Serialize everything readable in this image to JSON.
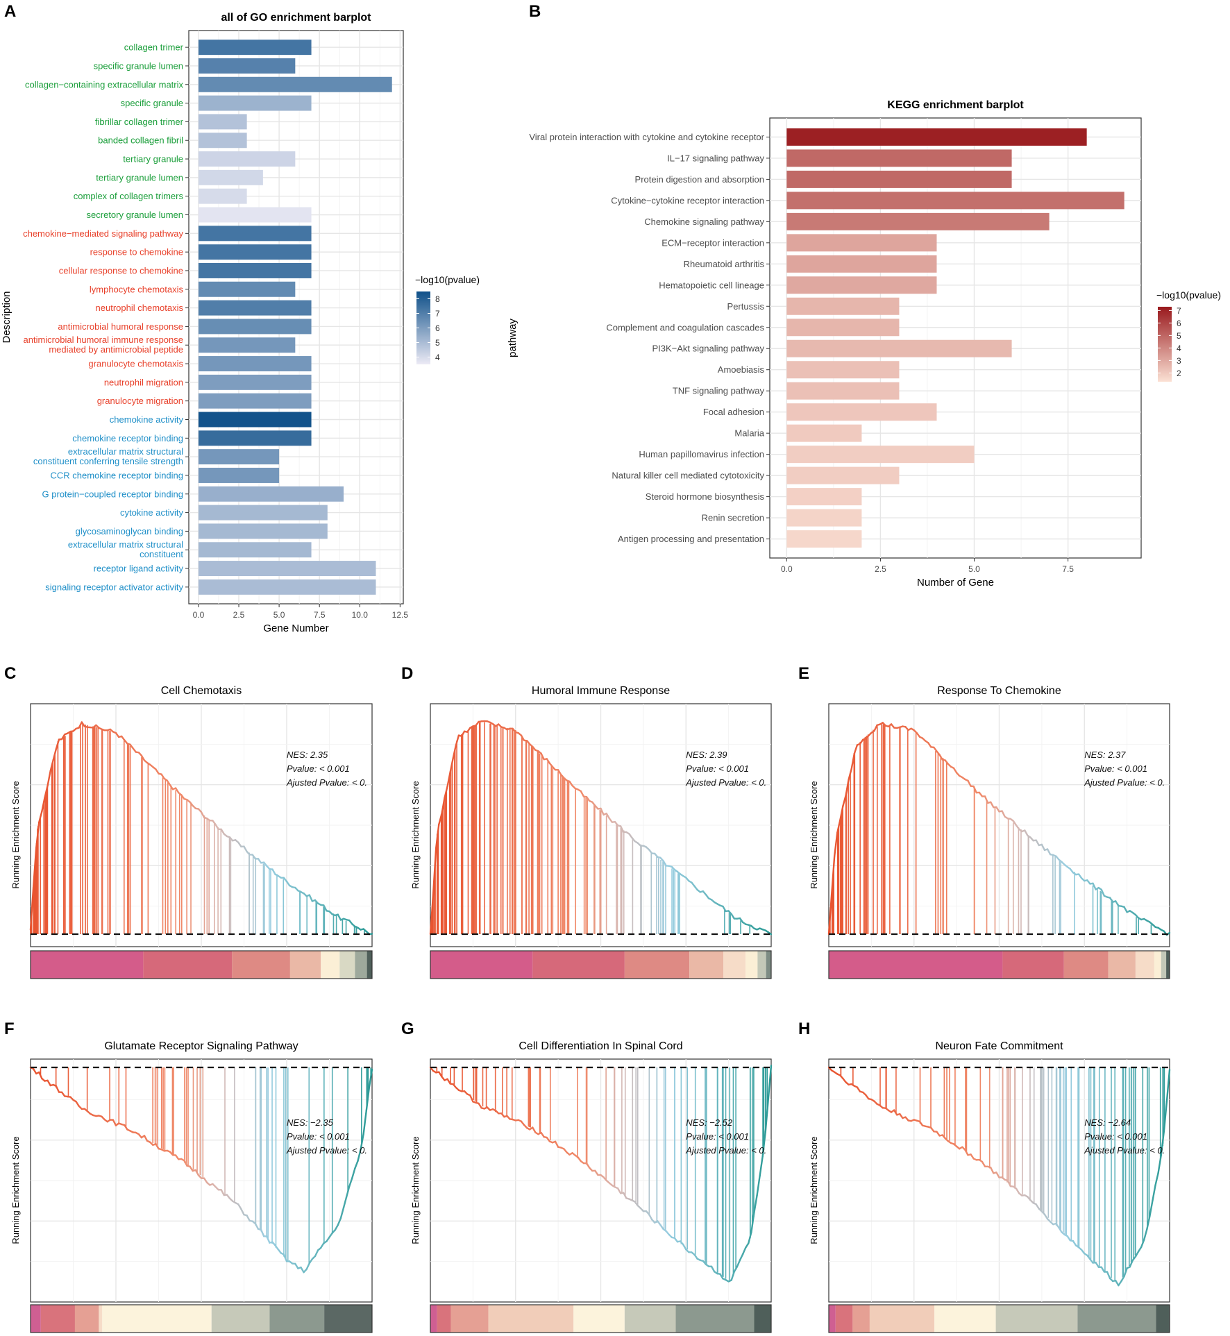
{
  "panel_labels": [
    "A",
    "B",
    "C",
    "D",
    "E",
    "F",
    "G",
    "H"
  ],
  "colors": {
    "go_bp": "#1a9e3a",
    "go_cc_red": "#e8402a",
    "go_mf": "#1f8fc8",
    "blue_low": "#eceaf5",
    "blue_high": "#0f5089",
    "red_low": "#fbe1d4",
    "red_high": "#99191d"
  },
  "chart_data": [
    {
      "id": "A",
      "type": "bar",
      "orientation": "horizontal",
      "title": "all of GO enrichment barplot",
      "xlabel": "Gene Number",
      "ylabel": "Description",
      "xlim": [
        -0.6,
        12.7
      ],
      "xticks": [
        "0.0",
        "2.5",
        "5.0",
        "7.5",
        "10.0",
        "12.5"
      ],
      "legend": {
        "title": "−log10(pvalue)",
        "ticks": [
          "8",
          "7",
          "6",
          "5",
          "4"
        ],
        "range": [
          3.5,
          8.5
        ],
        "position": "right"
      },
      "categories": [
        "collagen trimer",
        "specific granule lumen",
        "collagen−containing extracellular matrix",
        "specific granule",
        "fibrillar collagen trimer",
        "banded collagen fibril",
        "tertiary granule",
        "tertiary granule lumen",
        "complex of collagen trimers",
        "secretory granule lumen",
        "chemokine−mediated signaling pathway",
        "response to chemokine",
        "cellular response to chemokine",
        "lymphocyte chemotaxis",
        "neutrophil chemotaxis",
        "antimicrobial humoral response",
        "antimicrobial humoral immune response mediated by antimicrobial peptide",
        "granulocyte chemotaxis",
        "neutrophil migration",
        "granulocyte migration",
        "chemokine activity",
        "chemokine receptor binding",
        "extracellular matrix structural constituent conferring tensile strength",
        "CCR chemokine receptor binding",
        "G protein−coupled receptor binding",
        "cytokine activity",
        "glycosaminoglycan binding",
        "extracellular matrix structural constituent",
        "receptor ligand activity",
        "signaling receptor activator activity"
      ],
      "label_lines": [
        [
          "collagen trimer"
        ],
        [
          "specific granule lumen"
        ],
        [
          "collagen−containing extracellular matrix"
        ],
        [
          "specific granule"
        ],
        [
          "fibrillar collagen trimer"
        ],
        [
          "banded collagen fibril"
        ],
        [
          "tertiary granule"
        ],
        [
          "tertiary granule lumen"
        ],
        [
          "complex of collagen trimers"
        ],
        [
          "secretory granule lumen"
        ],
        [
          "chemokine−mediated signaling pathway"
        ],
        [
          "response to chemokine"
        ],
        [
          "cellular response to chemokine"
        ],
        [
          "lymphocyte chemotaxis"
        ],
        [
          "neutrophil chemotaxis"
        ],
        [
          "antimicrobial humoral response"
        ],
        [
          "antimicrobial humoral immune response",
          "mediated by antimicrobial peptide"
        ],
        [
          "granulocyte chemotaxis"
        ],
        [
          "neutrophil migration"
        ],
        [
          "granulocyte migration"
        ],
        [
          "chemokine activity"
        ],
        [
          "chemokine receptor binding"
        ],
        [
          "extracellular matrix structural",
          "constituent conferring tensile strength"
        ],
        [
          "CCR chemokine receptor binding"
        ],
        [
          "G protein−coupled receptor binding"
        ],
        [
          "cytokine activity"
        ],
        [
          "glycosaminoglycan binding"
        ],
        [
          "extracellular matrix structural",
          "constituent"
        ],
        [
          "receptor ligand activity"
        ],
        [
          "signaling receptor activator activity"
        ]
      ],
      "ontology": [
        "CC",
        "CC",
        "CC",
        "CC",
        "CC",
        "CC",
        "CC",
        "CC",
        "CC",
        "CC",
        "BP",
        "BP",
        "BP",
        "BP",
        "BP",
        "BP",
        "BP",
        "BP",
        "BP",
        "BP",
        "MF",
        "MF",
        "MF",
        "MF",
        "MF",
        "MF",
        "MF",
        "MF",
        "MF",
        "MF"
      ],
      "values": [
        7,
        6,
        12,
        7,
        3,
        3,
        6,
        4,
        3,
        7,
        7,
        7,
        7,
        6,
        7,
        7,
        6,
        7,
        7,
        7,
        7,
        7,
        5,
        5,
        9,
        8,
        8,
        7,
        11,
        11
      ],
      "color_values": [
        7.3,
        6.9,
        6.6,
        5.3,
        4.8,
        4.8,
        4.2,
        4.1,
        4.0,
        3.7,
        7.3,
        7.3,
        7.3,
        6.6,
        7.0,
        6.5,
        6.2,
        6.2,
        6.0,
        6.0,
        8.4,
        7.6,
        6.2,
        6.2,
        5.4,
        5.1,
        5.1,
        5.1,
        5.0,
        5.0
      ]
    },
    {
      "id": "B",
      "type": "bar",
      "orientation": "horizontal",
      "title": "KEGG enrichment barplot",
      "xlabel": "Number of Gene",
      "ylabel": "pathway",
      "xlim": [
        -0.45,
        9.45
      ],
      "xticks": [
        "0.0",
        "2.5",
        "5.0",
        "7.5"
      ],
      "legend": {
        "title": "−log10(pvalue)",
        "ticks": [
          "7",
          "6",
          "5",
          "4",
          "3",
          "2"
        ],
        "range": [
          1.3,
          7.3
        ],
        "position": "right"
      },
      "categories": [
        "Viral protein interaction with cytokine and cytokine receptor",
        "IL−17 signaling pathway",
        "Protein digestion and absorption",
        "Cytokine−cytokine receptor interaction",
        "Chemokine signaling pathway",
        "ECM−receptor interaction",
        "Rheumatoid arthritis",
        "Hematopoietic cell lineage",
        "Pertussis",
        "Complement and coagulation cascades",
        "PI3K−Akt signaling pathway",
        "Amoebiasis",
        "TNF signaling pathway",
        "Focal adhesion",
        "Malaria",
        "Human papillomavirus infection",
        "Natural killer cell mediated cytotoxicity",
        "Steroid hormone biosynthesis",
        "Renin secretion",
        "Antigen processing and presentation"
      ],
      "values": [
        8,
        6,
        6,
        9,
        7,
        4,
        4,
        4,
        3,
        3,
        6,
        3,
        3,
        4,
        2,
        5,
        3,
        2,
        2,
        2
      ],
      "color_values": [
        7.1,
        4.9,
        4.9,
        4.7,
        4.4,
        3.1,
        3.1,
        3.0,
        2.6,
        2.6,
        2.5,
        2.3,
        2.3,
        2.1,
        2.0,
        1.9,
        1.9,
        1.8,
        1.7,
        1.6
      ]
    },
    {
      "id": "C",
      "type": "line",
      "subtype": "gsea",
      "title": "Cell Chemotaxis",
      "ylabel": "Running Enrichment Score",
      "stats": [
        "NES: 2.35",
        "Pvalue: < 0.001",
        "Ajusted Pvalue: < 0."
      ],
      "direction": "positive",
      "x": [
        0,
        0.02,
        0.08,
        0.15,
        0.25,
        0.45,
        0.6,
        0.75,
        0.9,
        1.0
      ],
      "y": [
        0.02,
        0.48,
        0.88,
        0.96,
        0.92,
        0.62,
        0.42,
        0.24,
        0.08,
        0.0
      ],
      "hits": 110,
      "hit_density": 1.2,
      "strip": [
        {
          "to": 0.33,
          "color": "#d45c8a"
        },
        {
          "to": 0.59,
          "color": "#d6697a"
        },
        {
          "to": 0.76,
          "color": "#de8a84"
        },
        {
          "to": 0.85,
          "color": "#eab8a6"
        },
        {
          "to": 0.905,
          "color": "#fbefd6"
        },
        {
          "to": 0.95,
          "color": "#d9d9c4"
        },
        {
          "to": 0.985,
          "color": "#9ea99c"
        },
        {
          "to": 1.0,
          "color": "#4f5f5a"
        }
      ]
    },
    {
      "id": "D",
      "type": "line",
      "subtype": "gsea",
      "title": "Humoral Immune Response",
      "ylabel": "Running Enrichment Score",
      "stats": [
        "NES: 2.39",
        "Pvalue: < 0.001",
        "Ajusted Pvalue: < 0."
      ],
      "direction": "positive",
      "x": [
        0,
        0.02,
        0.08,
        0.15,
        0.25,
        0.45,
        0.6,
        0.75,
        0.9,
        1.0
      ],
      "y": [
        0.0,
        0.46,
        0.9,
        0.97,
        0.93,
        0.63,
        0.43,
        0.25,
        0.07,
        0.0
      ],
      "hits": 120,
      "hit_density": 1.25,
      "strip": [
        {
          "to": 0.3,
          "color": "#d45c8a"
        },
        {
          "to": 0.57,
          "color": "#d6697a"
        },
        {
          "to": 0.76,
          "color": "#de8a84"
        },
        {
          "to": 0.86,
          "color": "#eab8a6"
        },
        {
          "to": 0.925,
          "color": "#f6dcc8"
        },
        {
          "to": 0.96,
          "color": "#fbefd6"
        },
        {
          "to": 0.985,
          "color": "#c3c8b8"
        },
        {
          "to": 1.0,
          "color": "#7d8c84"
        }
      ]
    },
    {
      "id": "E",
      "type": "line",
      "subtype": "gsea",
      "title": "Response To Chemokine",
      "ylabel": "Running Enrichment Score",
      "stats": [
        "NES: 2.37",
        "Pvalue: < 0.001",
        "Ajusted Pvalue: < 0."
      ],
      "direction": "positive",
      "x": [
        0,
        0.02,
        0.08,
        0.15,
        0.25,
        0.45,
        0.6,
        0.75,
        0.9,
        1.0
      ],
      "y": [
        0.0,
        0.42,
        0.86,
        0.96,
        0.93,
        0.63,
        0.43,
        0.25,
        0.08,
        0.0
      ],
      "hits": 70,
      "hit_density": 1.4,
      "strip": [
        {
          "to": 0.51,
          "color": "#d45c8a"
        },
        {
          "to": 0.69,
          "color": "#d6697a"
        },
        {
          "to": 0.82,
          "color": "#de8a84"
        },
        {
          "to": 0.9,
          "color": "#eab8a6"
        },
        {
          "to": 0.955,
          "color": "#f6dcc8"
        },
        {
          "to": 0.975,
          "color": "#fbefd6"
        },
        {
          "to": 0.99,
          "color": "#c3c8b8"
        },
        {
          "to": 1.0,
          "color": "#4f5f5a"
        }
      ]
    },
    {
      "id": "F",
      "type": "line",
      "subtype": "gsea",
      "title": "Glutamate Receptor Signaling Pathway",
      "ylabel": "Running Enrichment Score",
      "stats": [
        "NES: −2.35",
        "Pvalue: < 0.001",
        "Ajusted Pvalue: < 0."
      ],
      "direction": "negative",
      "x": [
        0,
        0.15,
        0.3,
        0.45,
        0.6,
        0.75,
        0.8,
        0.9,
        0.97,
        1.0
      ],
      "y": [
        0.0,
        -0.18,
        -0.28,
        -0.42,
        -0.6,
        -0.85,
        -0.9,
        -0.7,
        -0.35,
        0.0
      ],
      "hits": 45,
      "hit_density": 0.6,
      "strip": [
        {
          "to": 0.03,
          "color": "#cf5f92"
        },
        {
          "to": 0.13,
          "color": "#d9737c"
        },
        {
          "to": 0.2,
          "color": "#e5a094"
        },
        {
          "to": 0.21,
          "color": "#f6dcc8"
        },
        {
          "to": 0.53,
          "color": "#fcf3dc"
        },
        {
          "to": 0.7,
          "color": "#c6c9b9"
        },
        {
          "to": 0.86,
          "color": "#8c998f"
        },
        {
          "to": 1.0,
          "color": "#5b6864"
        }
      ]
    },
    {
      "id": "G",
      "type": "line",
      "subtype": "gsea",
      "title": "Cell Differentiation In Spinal Cord",
      "ylabel": "Running Enrichment Score",
      "stats": [
        "NES: −2.52",
        "Pvalue: < 0.001",
        "Ajusted Pvalue: < 0."
      ],
      "direction": "negative",
      "x": [
        0,
        0.15,
        0.3,
        0.45,
        0.6,
        0.75,
        0.88,
        0.94,
        0.98,
        1.0
      ],
      "y": [
        0.0,
        -0.17,
        -0.27,
        -0.42,
        -0.6,
        -0.8,
        -0.95,
        -0.75,
        -0.35,
        0.0
      ],
      "hits": 65,
      "hit_density": 0.7,
      "strip": [
        {
          "to": 0.02,
          "color": "#cf5f92"
        },
        {
          "to": 0.06,
          "color": "#d9737c"
        },
        {
          "to": 0.17,
          "color": "#e5a094"
        },
        {
          "to": 0.42,
          "color": "#f1cdb9"
        },
        {
          "to": 0.57,
          "color": "#fcf3dc"
        },
        {
          "to": 0.72,
          "color": "#c6c9b9"
        },
        {
          "to": 0.95,
          "color": "#8c998f"
        },
        {
          "to": 1.0,
          "color": "#4f5f5a"
        }
      ]
    },
    {
      "id": "H",
      "type": "line",
      "subtype": "gsea",
      "title": "Neuron Fate Commitment",
      "ylabel": "Running Enrichment Score",
      "stats": [
        "NES: −2.64",
        "Pvalue: < 0.001",
        "Ajusted Pvalue: < 0."
      ],
      "direction": "negative",
      "x": [
        0,
        0.15,
        0.3,
        0.45,
        0.6,
        0.75,
        0.85,
        0.93,
        0.98,
        1.0
      ],
      "y": [
        0.0,
        -0.17,
        -0.27,
        -0.42,
        -0.6,
        -0.82,
        -0.96,
        -0.75,
        -0.35,
        0.0
      ],
      "hits": 70,
      "hit_density": 0.75,
      "strip": [
        {
          "to": 0.02,
          "color": "#cf5f92"
        },
        {
          "to": 0.07,
          "color": "#d9737c"
        },
        {
          "to": 0.12,
          "color": "#e5a094"
        },
        {
          "to": 0.31,
          "color": "#f1cdb9"
        },
        {
          "to": 0.49,
          "color": "#fcf3dc"
        },
        {
          "to": 0.73,
          "color": "#c6c9b9"
        },
        {
          "to": 0.96,
          "color": "#8c998f"
        },
        {
          "to": 1.0,
          "color": "#4f5f5a"
        }
      ]
    }
  ]
}
